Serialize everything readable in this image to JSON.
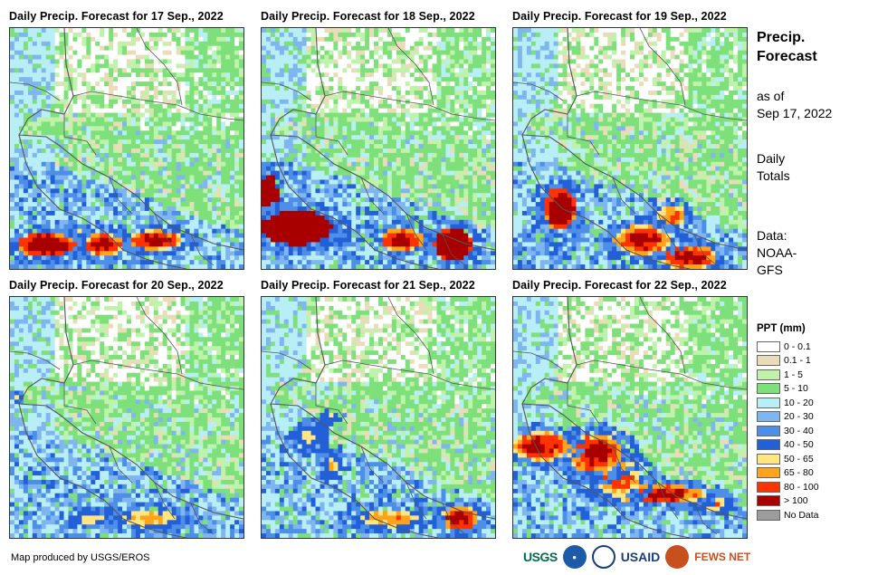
{
  "panels": [
    {
      "title": "Daily Precip. Forecast for 17 Sep., 2022",
      "seed": 17,
      "storms": [
        [
          0.15,
          0.9,
          0.12,
          0.05,
          9
        ],
        [
          0.4,
          0.9,
          0.08,
          0.05,
          8
        ],
        [
          0.62,
          0.88,
          0.12,
          0.04,
          8
        ],
        [
          0.3,
          0.88,
          0.08,
          0.04,
          7
        ]
      ]
    },
    {
      "title": "Daily Precip. Forecast for 18 Sep., 2022",
      "seed": 18,
      "storms": [
        [
          0.15,
          0.83,
          0.15,
          0.07,
          11
        ],
        [
          0.03,
          0.7,
          0.04,
          0.09,
          10
        ],
        [
          0.82,
          0.9,
          0.08,
          0.07,
          10
        ],
        [
          0.6,
          0.88,
          0.09,
          0.05,
          8
        ]
      ]
    },
    {
      "title": "Daily Precip. Forecast for 19 Sep., 2022",
      "seed": 19,
      "storms": [
        [
          0.2,
          0.75,
          0.07,
          0.09,
          9
        ],
        [
          0.55,
          0.88,
          0.12,
          0.06,
          8
        ],
        [
          0.75,
          0.95,
          0.12,
          0.05,
          8
        ],
        [
          0.68,
          0.78,
          0.06,
          0.05,
          7
        ]
      ]
    },
    {
      "title": "Daily Precip. Forecast for 20 Sep., 2022",
      "seed": 20,
      "storms": [
        [
          0.6,
          0.92,
          0.14,
          0.04,
          6
        ],
        [
          0.35,
          0.92,
          0.1,
          0.03,
          5
        ],
        [
          0.03,
          0.42,
          0.02,
          0.02,
          5
        ]
      ]
    },
    {
      "title": "Daily Precip. Forecast for 21 Sep., 2022",
      "seed": 21,
      "storms": [
        [
          0.55,
          0.92,
          0.15,
          0.04,
          6
        ],
        [
          0.85,
          0.92,
          0.08,
          0.05,
          8
        ],
        [
          0.2,
          0.58,
          0.06,
          0.05,
          5
        ],
        [
          0.3,
          0.7,
          0.04,
          0.05,
          5
        ],
        [
          0.3,
          0.5,
          0.04,
          0.02,
          5
        ]
      ]
    },
    {
      "title": "Daily Precip. Forecast for 22 Sep., 2022",
      "seed": 22,
      "storms": [
        [
          0.12,
          0.62,
          0.12,
          0.06,
          8
        ],
        [
          0.35,
          0.65,
          0.12,
          0.08,
          8
        ],
        [
          0.45,
          0.75,
          0.1,
          0.08,
          7
        ],
        [
          0.62,
          0.82,
          0.2,
          0.04,
          8
        ],
        [
          0.85,
          0.86,
          0.08,
          0.03,
          6
        ]
      ]
    }
  ],
  "side": {
    "title_line1": "Precip.",
    "title_line2": "Forecast",
    "asof_line1": "as of",
    "asof_line2": "Sep 17, 2022",
    "daily_line1": "Daily",
    "daily_line2": "Totals",
    "data_line1": "Data:",
    "data_line2": "NOAA-",
    "data_line3": "GFS"
  },
  "legend": {
    "title": "PPT (mm)",
    "items": [
      {
        "label": "0 - 0.1",
        "color": "#ffffff"
      },
      {
        "label": "0.1 - 1",
        "color": "#eadcb8"
      },
      {
        "label": "1 - 5",
        "color": "#bff2aa"
      },
      {
        "label": "5 - 10",
        "color": "#7ee07a"
      },
      {
        "label": "10 - 20",
        "color": "#b8eef5"
      },
      {
        "label": "20 - 30",
        "color": "#7fb6f0"
      },
      {
        "label": "30 - 40",
        "color": "#4d8ee8"
      },
      {
        "label": "40 - 50",
        "color": "#2360d8"
      },
      {
        "label": "50 - 65",
        "color": "#ffe680"
      },
      {
        "label": "65 - 80",
        "color": "#ffa31a"
      },
      {
        "label": "80 - 100",
        "color": "#ff3300"
      },
      {
        "label": "> 100",
        "color": "#a80000"
      },
      {
        "label": "No Data",
        "color": "#9c9c9c"
      }
    ]
  },
  "credit": "Map produced by USGS/EROS",
  "logos": {
    "usgs": "USGS",
    "usaid": "USAID",
    "fewsnet": "FEWS NET"
  }
}
